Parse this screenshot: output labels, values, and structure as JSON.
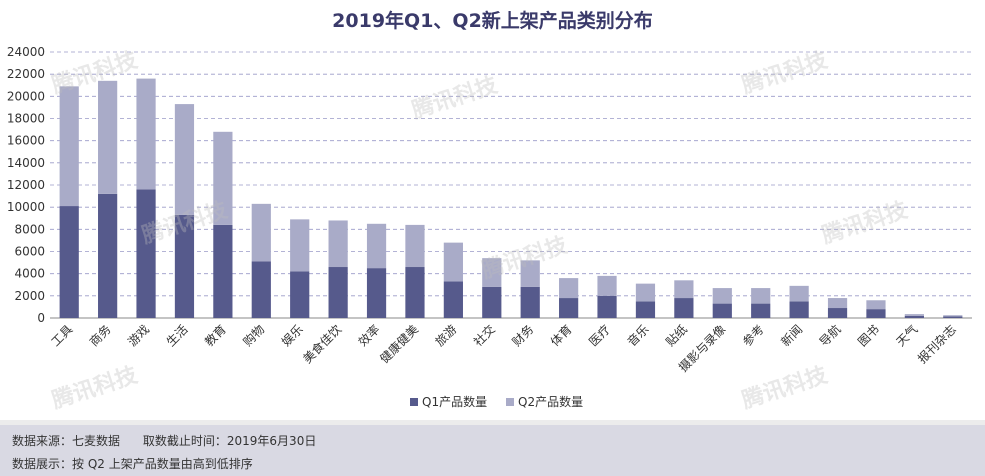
{
  "chart_data": {
    "type": "bar",
    "stacked": true,
    "title": "2019年Q1、Q2新上架产品类别分布",
    "categories": [
      "工具",
      "商务",
      "游戏",
      "生活",
      "教育",
      "购物",
      "娱乐",
      "美食佳饮",
      "效率",
      "健康健美",
      "旅游",
      "社交",
      "财务",
      "体育",
      "医疗",
      "音乐",
      "贴纸",
      "摄影与录像",
      "参考",
      "新闻",
      "导航",
      "图书",
      "天气",
      "报刊杂志"
    ],
    "series": [
      {
        "name": "Q1产品数量",
        "color": "#565a8c",
        "values": [
          10100,
          11200,
          11600,
          9300,
          8400,
          5100,
          4200,
          4600,
          4500,
          4600,
          3300,
          2800,
          2800,
          1800,
          2000,
          1500,
          1800,
          1300,
          1300,
          1500,
          900,
          800,
          200,
          150
        ]
      },
      {
        "name": "Q2产品数量",
        "color": "#a9abc8",
        "values": [
          10800,
          10200,
          10000,
          10000,
          8400,
          5200,
          4700,
          4200,
          4000,
          3800,
          3500,
          2600,
          2400,
          1800,
          1800,
          1600,
          1600,
          1400,
          1400,
          1400,
          900,
          800,
          150,
          100
        ]
      }
    ],
    "ylim": [
      0,
      24000
    ],
    "yticks": [
      0,
      2000,
      4000,
      6000,
      8000,
      10000,
      12000,
      14000,
      16000,
      18000,
      20000,
      22000,
      24000
    ],
    "grid": true,
    "legend_position": "bottom"
  },
  "watermark": "腾讯科技",
  "footer": {
    "line1": "数据来源：七麦数据      取数截止时间：2019年6月30日",
    "line2": "数据展示：按 Q2 上架产品数量由高到低排序"
  }
}
